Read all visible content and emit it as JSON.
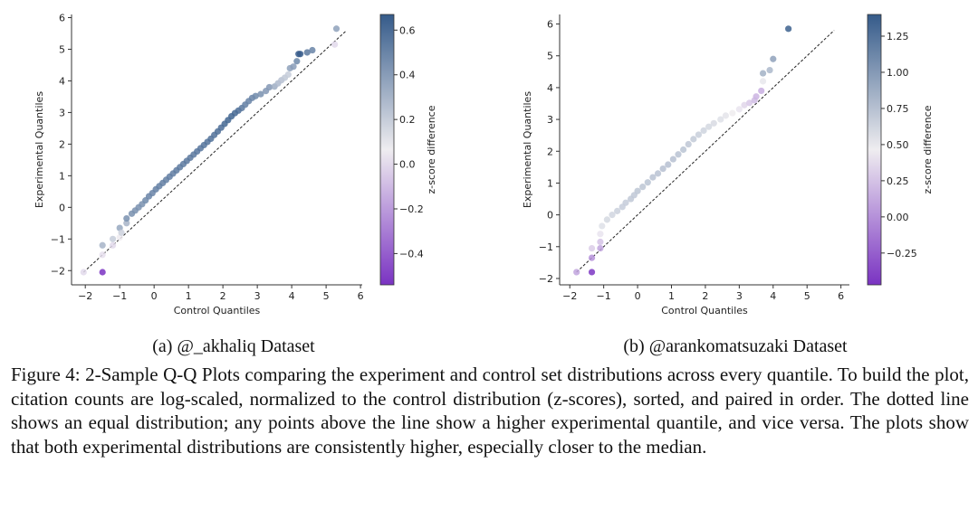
{
  "chart_data": [
    {
      "type": "scatter",
      "xlabel": "Control Quantiles",
      "ylabel": "Experimental Quantiles",
      "colorbar_label": "z-score difference",
      "xlim": [
        -2.4,
        6.05
      ],
      "ylim": [
        -2.45,
        6.1
      ],
      "xticks": [
        -2,
        -1,
        0,
        1,
        2,
        3,
        4,
        5,
        6
      ],
      "yticks": [
        -2,
        -1,
        0,
        1,
        2,
        3,
        4,
        5,
        6
      ],
      "xtick_labels": [
        "−2",
        "−1",
        "0",
        "1",
        "2",
        "3",
        "4",
        "5",
        "6"
      ],
      "ytick_labels": [
        "−2",
        "−1",
        "0",
        "1",
        "2",
        "3",
        "4",
        "5",
        "6"
      ],
      "colorbar_range": [
        -0.54,
        0.67
      ],
      "colorbar_ticks": [
        -0.4,
        -0.2,
        0.0,
        0.2,
        0.4,
        0.6
      ],
      "colorbar_tick_labels": [
        "−0.4",
        "−0.2",
        "0.0",
        "0.2",
        "0.4",
        "0.6"
      ],
      "reference_line": [
        -2.05,
        5.6
      ],
      "points": [
        [
          -2.05,
          -2.05,
          0.0
        ],
        [
          -1.5,
          -2.05,
          -0.54
        ],
        [
          -1.5,
          -1.5,
          0.02
        ],
        [
          -1.5,
          -1.2,
          0.3
        ],
        [
          -1.2,
          -1.2,
          0.0
        ],
        [
          -1.2,
          -1.0,
          0.2
        ],
        [
          -1.0,
          -0.95,
          0.06
        ],
        [
          -1.0,
          -0.65,
          0.35
        ],
        [
          -0.95,
          -0.8,
          0.18
        ],
        [
          -0.8,
          -0.5,
          0.3
        ],
        [
          -0.8,
          -0.35,
          0.45
        ],
        [
          -0.65,
          -0.2,
          0.45
        ],
        [
          -0.55,
          -0.1,
          0.45
        ],
        [
          -0.45,
          0.0,
          0.45
        ],
        [
          -0.35,
          0.1,
          0.45
        ],
        [
          -0.25,
          0.22,
          0.48
        ],
        [
          -0.15,
          0.35,
          0.5
        ],
        [
          -0.05,
          0.45,
          0.5
        ],
        [
          0.05,
          0.57,
          0.52
        ],
        [
          0.15,
          0.67,
          0.52
        ],
        [
          0.25,
          0.77,
          0.52
        ],
        [
          0.35,
          0.87,
          0.52
        ],
        [
          0.45,
          0.97,
          0.53
        ],
        [
          0.55,
          1.07,
          0.53
        ],
        [
          0.65,
          1.17,
          0.54
        ],
        [
          0.75,
          1.27,
          0.54
        ],
        [
          0.85,
          1.37,
          0.54
        ],
        [
          0.95,
          1.47,
          0.55
        ],
        [
          1.05,
          1.57,
          0.55
        ],
        [
          1.15,
          1.67,
          0.55
        ],
        [
          1.25,
          1.77,
          0.56
        ],
        [
          1.35,
          1.87,
          0.56
        ],
        [
          1.45,
          1.97,
          0.57
        ],
        [
          1.55,
          2.07,
          0.57
        ],
        [
          1.65,
          2.17,
          0.58
        ],
        [
          1.75,
          2.29,
          0.58
        ],
        [
          1.85,
          2.4,
          0.59
        ],
        [
          1.95,
          2.52,
          0.6
        ],
        [
          2.05,
          2.64,
          0.62
        ],
        [
          2.15,
          2.76,
          0.63
        ],
        [
          2.25,
          2.88,
          0.63
        ],
        [
          2.35,
          2.98,
          0.62
        ],
        [
          2.45,
          3.06,
          0.6
        ],
        [
          2.55,
          3.14,
          0.55
        ],
        [
          2.65,
          3.25,
          0.52
        ],
        [
          2.75,
          3.36,
          0.5
        ],
        [
          2.85,
          3.46,
          0.5
        ],
        [
          2.95,
          3.52,
          0.48
        ],
        [
          3.1,
          3.58,
          0.45
        ],
        [
          3.25,
          3.68,
          0.42
        ],
        [
          3.35,
          3.8,
          0.42
        ],
        [
          3.5,
          3.82,
          0.33
        ],
        [
          3.6,
          3.92,
          0.28
        ],
        [
          3.7,
          4.02,
          0.25
        ],
        [
          3.8,
          4.1,
          0.22
        ],
        [
          3.9,
          4.2,
          0.2
        ],
        [
          3.95,
          4.4,
          0.38
        ],
        [
          4.05,
          4.45,
          0.4
        ],
        [
          4.15,
          4.62,
          0.48
        ],
        [
          4.2,
          4.85,
          0.66
        ],
        [
          4.25,
          4.85,
          0.66
        ],
        [
          4.45,
          4.9,
          0.55
        ],
        [
          4.6,
          4.97,
          0.5
        ],
        [
          5.25,
          5.15,
          0.0
        ],
        [
          5.3,
          5.65,
          0.38
        ]
      ]
    },
    {
      "type": "scatter",
      "xlabel": "Control Quantiles",
      "ylabel": "Experimental Quantiles",
      "colorbar_label": "z-score difference",
      "xlim": [
        -2.3,
        6.25
      ],
      "ylim": [
        -2.2,
        6.3
      ],
      "xticks": [
        -2,
        -1,
        0,
        1,
        2,
        3,
        4,
        5,
        6
      ],
      "yticks": [
        -2,
        -1,
        0,
        1,
        2,
        3,
        4,
        5,
        6
      ],
      "xtick_labels": [
        "−2",
        "−1",
        "0",
        "1",
        "2",
        "3",
        "4",
        "5",
        "6"
      ],
      "ytick_labels": [
        "−2",
        "−1",
        "0",
        "1",
        "2",
        "3",
        "4",
        "5",
        "6"
      ],
      "colorbar_range": [
        -0.47,
        1.4
      ],
      "colorbar_ticks": [
        -0.25,
        0.0,
        0.25,
        0.5,
        0.75,
        1.0,
        1.25
      ],
      "colorbar_tick_labels": [
        "−0.25",
        "0.00",
        "0.25",
        "0.50",
        "0.75",
        "1.00",
        "1.25"
      ],
      "reference_line": [
        -1.8,
        5.8
      ],
      "points": [
        [
          -1.8,
          -1.8,
          0.1
        ],
        [
          -1.35,
          -1.8,
          -0.45
        ],
        [
          -1.35,
          -1.35,
          0.0
        ],
        [
          -1.35,
          -1.05,
          0.3
        ],
        [
          -1.1,
          -1.05,
          0.1
        ],
        [
          -1.1,
          -0.85,
          0.25
        ],
        [
          -1.1,
          -0.6,
          0.42
        ],
        [
          -1.05,
          -0.35,
          0.55
        ],
        [
          -0.9,
          -0.15,
          0.6
        ],
        [
          -0.75,
          0.0,
          0.62
        ],
        [
          -0.6,
          0.12,
          0.65
        ],
        [
          -0.45,
          0.25,
          0.67
        ],
        [
          -0.35,
          0.38,
          0.68
        ],
        [
          -0.2,
          0.5,
          0.7
        ],
        [
          -0.1,
          0.62,
          0.7
        ],
        [
          0.0,
          0.75,
          0.72
        ],
        [
          0.15,
          0.88,
          0.72
        ],
        [
          0.3,
          1.02,
          0.73
        ],
        [
          0.45,
          1.18,
          0.74
        ],
        [
          0.6,
          1.3,
          0.74
        ],
        [
          0.75,
          1.45,
          0.75
        ],
        [
          0.9,
          1.58,
          0.75
        ],
        [
          1.05,
          1.75,
          0.75
        ],
        [
          1.2,
          1.9,
          0.74
        ],
        [
          1.35,
          2.05,
          0.73
        ],
        [
          1.5,
          2.22,
          0.71
        ],
        [
          1.65,
          2.38,
          0.69
        ],
        [
          1.8,
          2.52,
          0.66
        ],
        [
          1.95,
          2.65,
          0.63
        ],
        [
          2.1,
          2.77,
          0.6
        ],
        [
          2.25,
          2.88,
          0.58
        ],
        [
          2.45,
          3.0,
          0.55
        ],
        [
          2.6,
          3.12,
          0.52
        ],
        [
          2.8,
          3.2,
          0.47
        ],
        [
          3.0,
          3.32,
          0.42
        ],
        [
          3.15,
          3.45,
          0.35
        ],
        [
          3.3,
          3.52,
          0.28
        ],
        [
          3.45,
          3.6,
          0.22
        ],
        [
          3.5,
          3.72,
          0.18
        ],
        [
          3.65,
          3.9,
          0.15
        ],
        [
          3.7,
          4.2,
          0.5
        ],
        [
          3.7,
          4.45,
          0.85
        ],
        [
          3.9,
          4.55,
          0.8
        ],
        [
          4.0,
          4.9,
          0.95
        ],
        [
          4.45,
          5.85,
          1.36
        ]
      ]
    }
  ],
  "subcaptions": [
    "(a) @_akhaliq Dataset",
    "(b) @arankomatsuzaki Dataset"
  ],
  "caption": "Figure 4: 2-Sample Q-Q Plots comparing the experiment and control set distributions across every quantile. To build the plot, citation counts are log-scaled, normalized to the control distribution (z-scores), sorted, and paired in order. The dotted line shows an equal distribution; any points above the line show a higher experimental quantile, and vice versa. The plots show that both experimental distributions are consistently higher, especially closer to the median.",
  "colors": {
    "low": "#7a33c2",
    "mid": "#efedf0",
    "high": "#355b8a",
    "line": "#222222"
  }
}
